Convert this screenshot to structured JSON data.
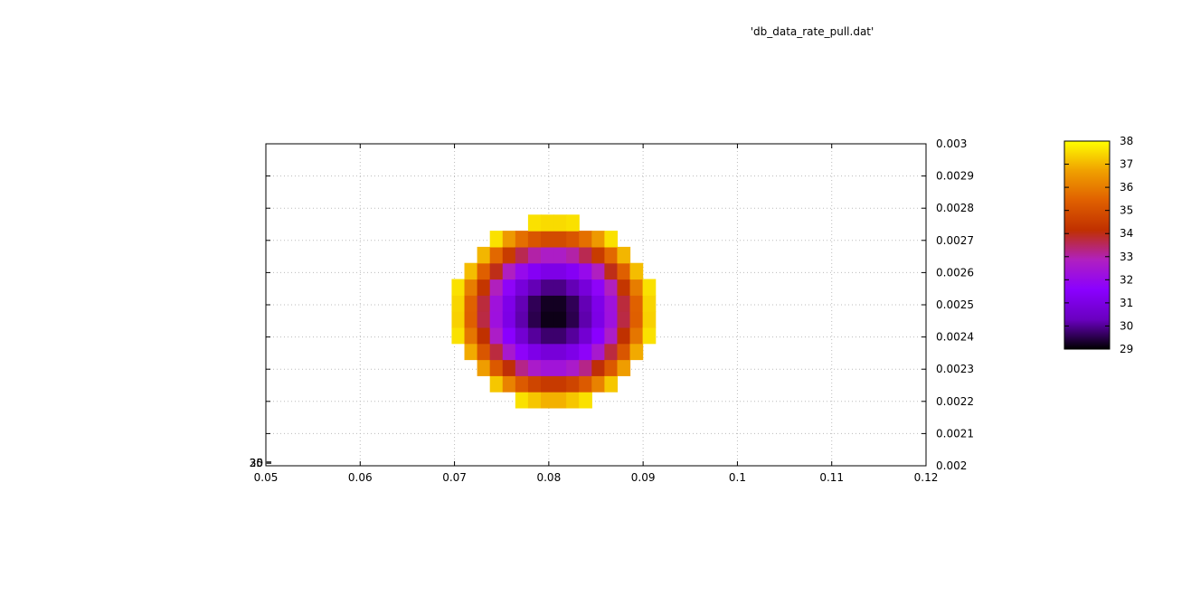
{
  "chart_data": {
    "type": "heatmap",
    "title": "'db_data_rate_pull.dat'",
    "xlabel": "",
    "ylabel": "",
    "x_ticks": [
      "0.05",
      "0.06",
      "0.07",
      "0.08",
      "0.09",
      "0.1",
      "0.11",
      "0.12"
    ],
    "y_ticks": [
      "0.002",
      "0.0021",
      "0.0022",
      "0.0023",
      "0.0024",
      "0.0025",
      "0.0026",
      "0.0027",
      "0.0028",
      "0.0029",
      "0.003"
    ],
    "xlim": [
      0.05,
      0.12
    ],
    "ylim": [
      0.002,
      0.003
    ],
    "grid": true,
    "y_axis_side": "right",
    "colorbar": {
      "ticks": [
        "29",
        "30",
        "31",
        "32",
        "33",
        "34",
        "35",
        "36",
        "37",
        "38"
      ],
      "range": [
        29,
        38
      ],
      "palette": [
        "#000000",
        "#6a00c0",
        "#8a00ff",
        "#b020c0",
        "#c03000",
        "#e06000",
        "#f0a000",
        "#ffff00"
      ]
    },
    "field": {
      "center_x": 0.0805,
      "center_y": 0.00245,
      "min_value": 29,
      "max_value": 37.6,
      "extent_x": [
        0.0697,
        0.0905
      ],
      "extent_y": [
        0.00218,
        0.00275
      ],
      "cell_x": 0.00135,
      "cell_y": 2e-05
    },
    "stray_labels": [
      "20",
      "30",
      "35"
    ]
  }
}
